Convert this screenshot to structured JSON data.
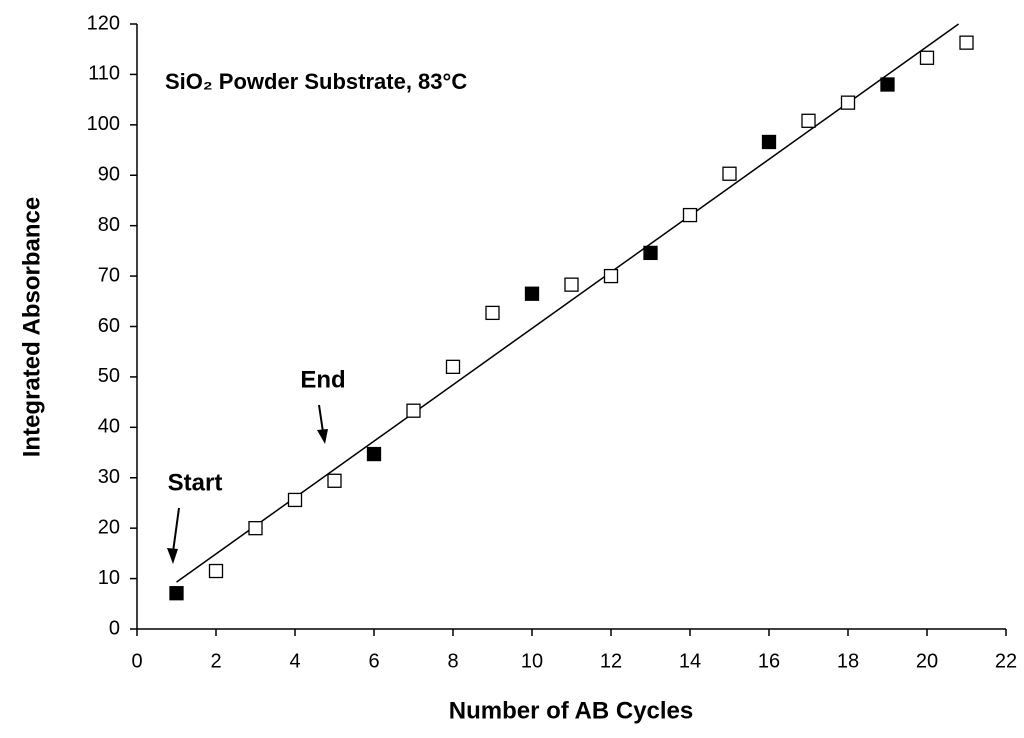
{
  "chart_data": {
    "type": "scatter",
    "title": "SiO₂ Powder Substrate, 83°C",
    "x_label": "Number of AB Cycles",
    "y_label": "Integrated Absorbance",
    "xlim": [
      0,
      22
    ],
    "xticks": [
      0,
      2,
      4,
      6,
      8,
      10,
      12,
      14,
      16,
      18,
      20,
      22
    ],
    "ylim": [
      0,
      120
    ],
    "yticks": [
      0,
      10,
      20,
      30,
      40,
      50,
      60,
      70,
      80,
      90,
      100,
      110,
      120
    ],
    "series": [
      {
        "color": "#000000",
        "filled": true,
        "x": [
          1,
          6,
          10,
          13,
          16,
          19
        ],
        "values": [
          7.1,
          34.7,
          66.5,
          74.6,
          96.6,
          108
        ]
      },
      {
        "color": "#000000",
        "filled": false,
        "x": [
          2,
          3,
          4,
          5,
          7,
          8,
          9,
          11,
          12,
          14,
          15,
          17,
          18,
          20,
          21
        ],
        "values": [
          11.5,
          20,
          25.6,
          29.4,
          43.3,
          52,
          62.7,
          68.3,
          70,
          82.1,
          90.3,
          100.8,
          104.4,
          113.3,
          116.3
        ]
      }
    ],
    "trendline": {
      "color": "#000000",
      "x": [
        1,
        20.8
      ],
      "values": [
        9.3,
        120
      ]
    },
    "annotations": [
      "Start",
      "End"
    ]
  }
}
